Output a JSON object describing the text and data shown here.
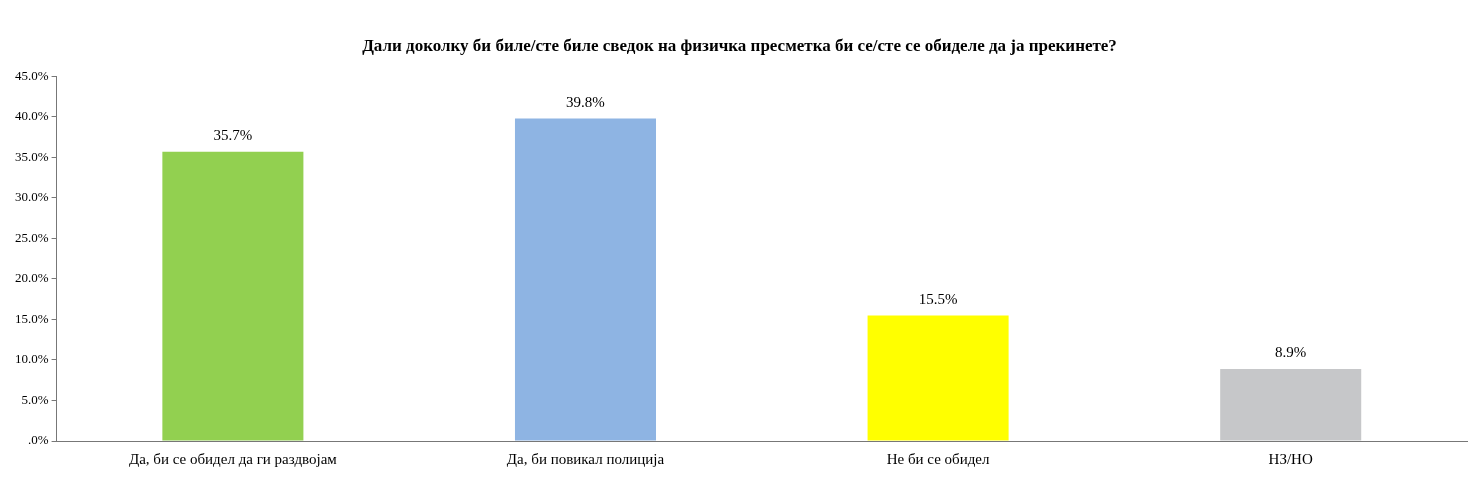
{
  "chart_data": {
    "type": "bar",
    "title": "Дали доколку би биле/сте биле сведок на физичка пресметка би се/сте се обиделе да ја прекинете?",
    "categories": [
      "Да, би се обидел да ги раздвојам",
      "Да, би повикал полиција",
      "Не би се обидел",
      "НЗ/НО"
    ],
    "values": [
      35.7,
      39.8,
      15.5,
      8.9
    ],
    "colors": [
      "#92d050",
      "#8eb4e3",
      "#ffff00",
      "#c6c7c9"
    ],
    "value_labels": [
      "35.7%",
      "39.8%",
      "15.5%",
      "8.9%"
    ],
    "ylim": [
      0,
      45
    ],
    "yticks": [
      {
        "value": 0,
        "label": ".0%"
      },
      {
        "value": 5,
        "label": "5.0%"
      },
      {
        "value": 10,
        "label": "10.0%"
      },
      {
        "value": 15,
        "label": "15.0%"
      },
      {
        "value": 20,
        "label": "20.0%"
      },
      {
        "value": 25,
        "label": "25.0%"
      },
      {
        "value": 30,
        "label": "30.0%"
      },
      {
        "value": 35,
        "label": "35.0%"
      },
      {
        "value": 40,
        "label": "40.0%"
      },
      {
        "value": 45,
        "label": "45.0%"
      }
    ],
    "grid": false,
    "legend": false
  }
}
